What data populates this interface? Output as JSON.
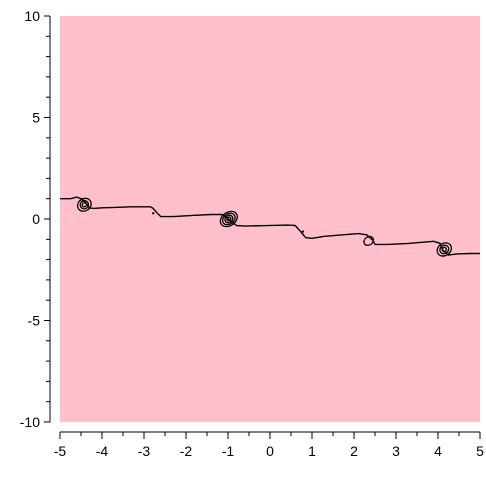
{
  "chart_data": {
    "type": "contour",
    "title": "",
    "xlabel": "",
    "ylabel": "",
    "xlim": [
      -5,
      5
    ],
    "ylim": [
      -10,
      10
    ],
    "x_ticks": [
      "-5",
      "-4",
      "-3",
      "-2",
      "-1",
      "0",
      "1",
      "2",
      "3",
      "4",
      "5"
    ],
    "y_ticks": [
      "10",
      "5",
      "0",
      "-5",
      "-10"
    ],
    "x_tick_values": [
      -5,
      -4,
      -3,
      -2,
      -1,
      0,
      1,
      2,
      3,
      4,
      5
    ],
    "y_tick_values": [
      10,
      5,
      0,
      -5,
      -10
    ],
    "minor_ticks_per_unit": 2,
    "grid": false,
    "legend": "none",
    "background_color": "#ffc0cb",
    "line_color": "#000000",
    "contour_line": [
      [
        -5.0,
        1.0
      ],
      [
        -4.75,
        1.0
      ],
      [
        -4.6,
        1.08
      ],
      [
        -4.5,
        1.0
      ],
      [
        -4.45,
        0.92
      ],
      [
        -4.38,
        0.78
      ],
      [
        -4.3,
        0.55
      ],
      [
        -4.2,
        0.52
      ],
      [
        -4.0,
        0.55
      ],
      [
        -3.7,
        0.57
      ],
      [
        -3.3,
        0.6
      ],
      [
        -2.95,
        0.6
      ],
      [
        -2.85,
        0.6
      ],
      [
        -2.78,
        0.52
      ],
      [
        -2.68,
        0.28
      ],
      [
        -2.6,
        0.12
      ],
      [
        -2.3,
        0.12
      ],
      [
        -1.8,
        0.18
      ],
      [
        -1.4,
        0.22
      ],
      [
        -1.15,
        0.22
      ],
      [
        -1.05,
        0.12
      ],
      [
        -0.95,
        -0.08
      ],
      [
        -0.8,
        -0.32
      ],
      [
        -0.6,
        -0.35
      ],
      [
        -0.2,
        -0.33
      ],
      [
        0.4,
        -0.3
      ],
      [
        0.6,
        -0.32
      ],
      [
        0.7,
        -0.55
      ],
      [
        0.85,
        -0.92
      ],
      [
        1.0,
        -0.95
      ],
      [
        1.3,
        -0.85
      ],
      [
        2.1,
        -0.72
      ],
      [
        2.3,
        -0.78
      ],
      [
        2.45,
        -1.05
      ],
      [
        2.5,
        -1.25
      ],
      [
        2.8,
        -1.25
      ],
      [
        3.3,
        -1.2
      ],
      [
        3.9,
        -1.1
      ],
      [
        4.05,
        -1.2
      ],
      [
        4.12,
        -1.55
      ],
      [
        4.25,
        -1.78
      ],
      [
        4.45,
        -1.72
      ],
      [
        4.75,
        -1.7
      ],
      [
        5.0,
        -1.7
      ]
    ],
    "closed_contours": [
      {
        "cx": -4.42,
        "cy": 0.7,
        "rx": 0.17,
        "ry": 0.3
      },
      {
        "cx": -4.42,
        "cy": 0.7,
        "rx": 0.1,
        "ry": 0.2
      },
      {
        "cx": -4.42,
        "cy": 0.7,
        "rx": 0.05,
        "ry": 0.1
      },
      {
        "cx": -0.98,
        "cy": 0.0,
        "rx": 0.22,
        "ry": 0.33
      },
      {
        "cx": -0.98,
        "cy": 0.0,
        "rx": 0.16,
        "ry": 0.25
      },
      {
        "cx": -0.98,
        "cy": 0.0,
        "rx": 0.1,
        "ry": 0.17
      },
      {
        "cx": -0.98,
        "cy": 0.0,
        "rx": 0.05,
        "ry": 0.08
      },
      {
        "cx": 2.35,
        "cy": -1.08,
        "rx": 0.12,
        "ry": 0.2
      },
      {
        "cx": 4.15,
        "cy": -1.5,
        "rx": 0.18,
        "ry": 0.3
      },
      {
        "cx": 4.15,
        "cy": -1.5,
        "rx": 0.11,
        "ry": 0.2
      },
      {
        "cx": 4.15,
        "cy": -1.5,
        "rx": 0.05,
        "ry": 0.1
      }
    ],
    "dots": [
      [
        -2.78,
        0.28
      ],
      [
        0.78,
        -0.62
      ]
    ]
  }
}
